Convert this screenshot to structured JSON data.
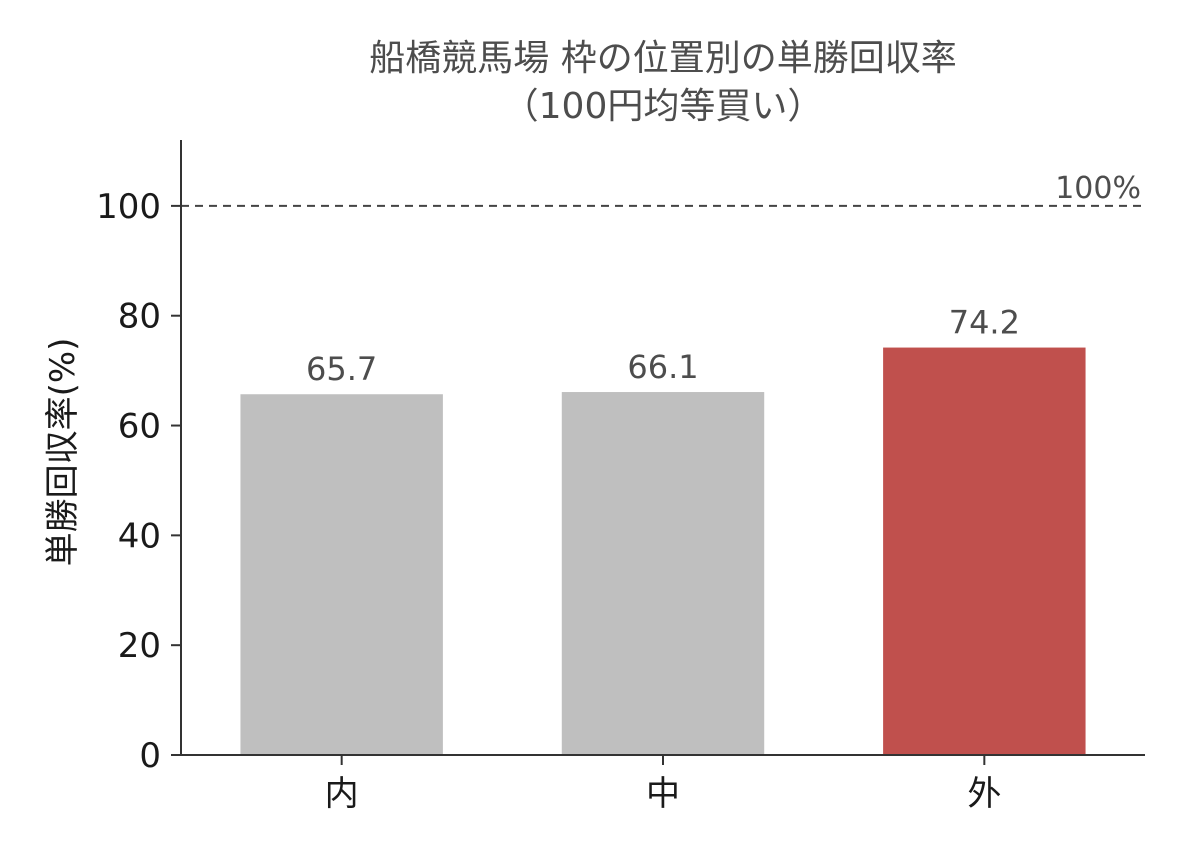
{
  "chart_data": {
    "type": "bar",
    "title": "船橋競馬場 枠の位置別の単勝回収率",
    "subtitle": "（100円均等買い）",
    "xlabel": "",
    "ylabel": "単勝回収率(%)",
    "categories": [
      "内",
      "中",
      "外"
    ],
    "values": [
      65.7,
      66.1,
      74.2
    ],
    "value_labels": [
      "65.7",
      "66.1",
      "74.2"
    ],
    "bar_colors": [
      "#bfbfbf",
      "#bfbfbf",
      "#c0504d"
    ],
    "ylim": [
      0,
      112
    ],
    "yticks": [
      0,
      20,
      40,
      60,
      80,
      100
    ],
    "reference_line": {
      "value": 100,
      "label": "100%",
      "style": "dashed",
      "color": "#444444"
    },
    "grid": false,
    "legend": "none"
  }
}
